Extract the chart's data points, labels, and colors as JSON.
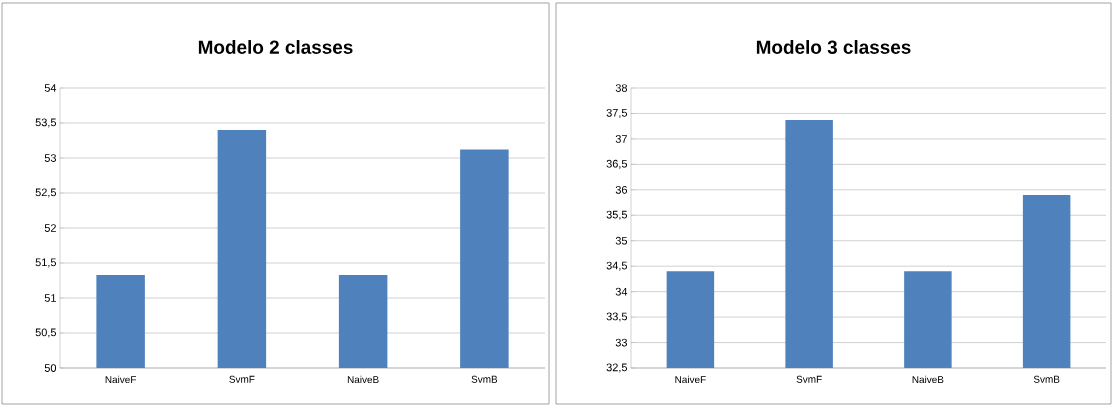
{
  "chart_data": [
    {
      "type": "bar",
      "title": "Modelo 2 classes",
      "categories": [
        "NaiveF",
        "SvmF",
        "NaiveB",
        "SvmB"
      ],
      "values": [
        51.33,
        53.4,
        51.33,
        53.12
      ],
      "color": "#4f81bd",
      "ylim": [
        50,
        54
      ],
      "yticks": [
        50,
        {
          "value": 50.5,
          "label": "50,5"
        },
        51,
        {
          "value": 51.5,
          "label": "51,5"
        },
        52,
        {
          "value": 52.5,
          "label": "52,5"
        },
        53,
        {
          "value": 53.5,
          "label": "53,5"
        },
        54
      ],
      "grid": "y"
    },
    {
      "type": "bar",
      "title": "Modelo 3 classes",
      "categories": [
        "NaiveF",
        "SvmF",
        "NaiveB",
        "SvmB"
      ],
      "values": [
        34.4,
        37.37,
        34.4,
        35.9
      ],
      "color": "#4f81bd",
      "ylim": [
        32.5,
        38
      ],
      "yticks": [
        {
          "value": 32.5,
          "label": "32,5"
        },
        33,
        {
          "value": 33.5,
          "label": "33,5"
        },
        34,
        {
          "value": 34.5,
          "label": "34,5"
        },
        35,
        {
          "value": 35.5,
          "label": "35,5"
        },
        36,
        {
          "value": 36.5,
          "label": "36,5"
        },
        37,
        {
          "value": 37.5,
          "label": "37,5"
        },
        38
      ],
      "grid": "y"
    }
  ]
}
